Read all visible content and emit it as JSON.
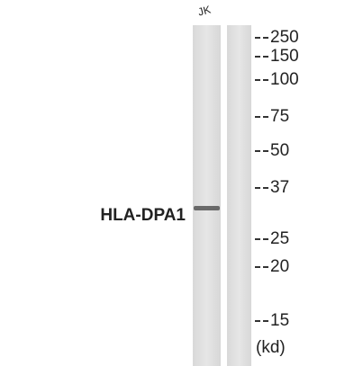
{
  "lane_label": "JK",
  "protein_label": "HLA-DPA1",
  "markers": [
    250,
    150,
    100,
    75,
    50,
    37,
    25,
    20,
    15
  ],
  "unit": "(kd)"
}
